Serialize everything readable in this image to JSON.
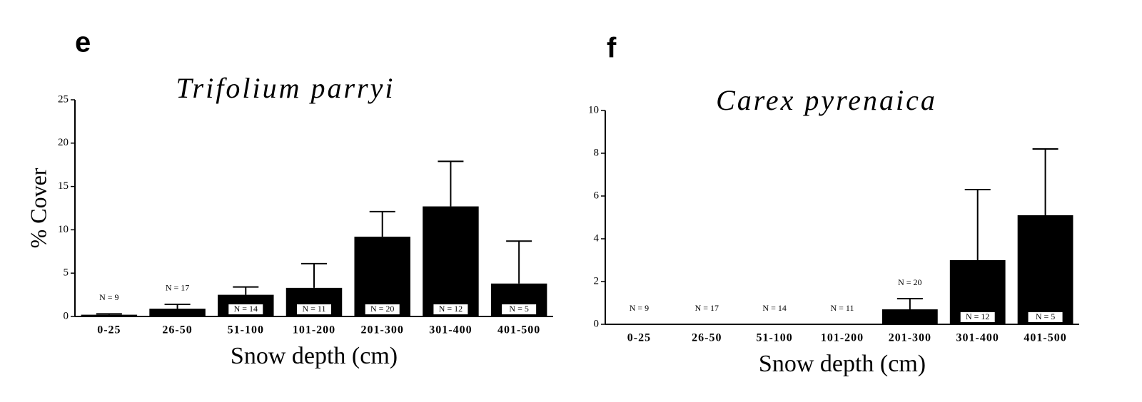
{
  "chart_data": [
    {
      "type": "bar",
      "panel": "e",
      "title": "Trifolium   parryi",
      "ylabel": "% Cover",
      "xlabel": "Snow depth (cm)",
      "categories": [
        "0-25",
        "26-50",
        "51-100",
        "101-200",
        "201-300",
        "301-400",
        "401-500"
      ],
      "values": [
        0.2,
        0.9,
        2.5,
        3.3,
        9.2,
        12.7,
        3.8
      ],
      "errors": [
        0.1,
        0.5,
        0.9,
        2.8,
        2.9,
        5.2,
        4.9
      ],
      "annotations": [
        "N = 9",
        "N = 17",
        "N = 14",
        "N = 11",
        "N = 20",
        "N = 12",
        "N = 5"
      ],
      "color": "#000000",
      "ylim": [
        0,
        25
      ],
      "yticks": [
        0,
        5,
        10,
        15,
        20,
        25
      ]
    },
    {
      "type": "bar",
      "panel": "f",
      "title": "Carex   pyrenaica",
      "xlabel": "Snow depth (cm)",
      "categories": [
        "0-25",
        "26-50",
        "51-100",
        "101-200",
        "201-300",
        "301-400",
        "401-500"
      ],
      "values": [
        0,
        0,
        0,
        0,
        0.7,
        3.0,
        5.1
      ],
      "errors": [
        0,
        0,
        0,
        0,
        0.5,
        3.3,
        3.1
      ],
      "annotations": [
        "N = 9",
        "N = 17",
        "N = 14",
        "N = 11",
        "N = 20",
        "N = 12",
        "N = 5"
      ],
      "color": "#000000",
      "ylim": [
        0,
        10
      ],
      "yticks": [
        0,
        2,
        4,
        6,
        8,
        10
      ]
    }
  ]
}
